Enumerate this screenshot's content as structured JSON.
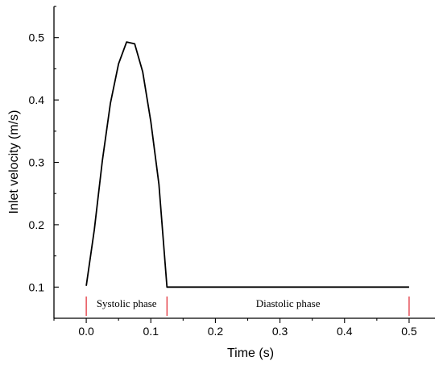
{
  "chart_data": {
    "type": "line",
    "title": "",
    "xlabel": "Time (s)",
    "ylabel": "Inlet velocity (m/s)",
    "xlim": [
      -0.05,
      0.54
    ],
    "ylim": [
      0.05,
      0.55
    ],
    "xticks": [
      0.0,
      0.1,
      0.2,
      0.3,
      0.4,
      0.5
    ],
    "xtick_labels": [
      "0.0",
      "0.1",
      "0.2",
      "0.3",
      "0.4",
      "0.5"
    ],
    "yticks": [
      0.1,
      0.2,
      0.3,
      0.4,
      0.5
    ],
    "ytick_labels": [
      "0.1",
      "0.2",
      "0.3",
      "0.4",
      "0.5"
    ],
    "grid": false,
    "series": [
      {
        "color": "#000000",
        "x": [
          0.0,
          0.0125,
          0.025,
          0.0375,
          0.05,
          0.0625,
          0.075,
          0.0875,
          0.1,
          0.1125,
          0.125,
          0.5
        ],
        "y": [
          0.102,
          0.192,
          0.303,
          0.395,
          0.458,
          0.493,
          0.49,
          0.445,
          0.365,
          0.265,
          0.1,
          0.1
        ]
      }
    ],
    "phase_markers": {
      "color": "#e0202a",
      "x": [
        0.0,
        0.125,
        0.5
      ]
    },
    "annotations": [
      {
        "text": "Systolic phase",
        "x": 0.0625
      },
      {
        "text": "Diastolic phase",
        "x": 0.3125
      }
    ]
  }
}
